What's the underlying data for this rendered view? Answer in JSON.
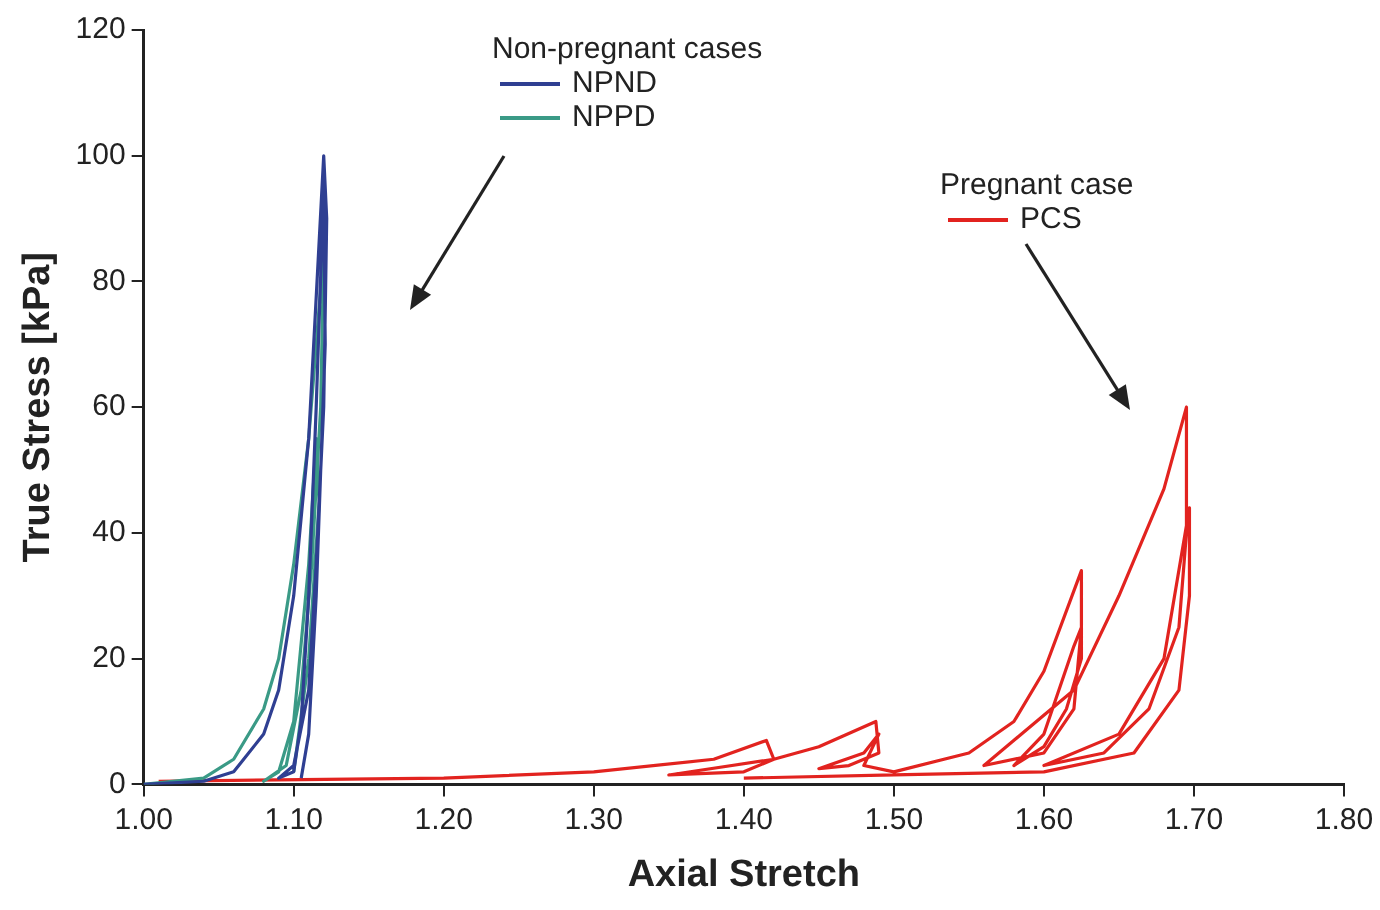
{
  "chart_data": {
    "type": "line",
    "xlabel": "Axial Stretch",
    "ylabel": "True Stress [kPa]",
    "xlim": [
      1.0,
      1.8
    ],
    "xticks": [
      {
        "value": 1.0,
        "label": "1.00"
      },
      {
        "value": 1.1,
        "label": "1.10"
      },
      {
        "value": 1.2,
        "label": "1.20"
      },
      {
        "value": 1.3,
        "label": "1.30"
      },
      {
        "value": 1.4,
        "label": "1.40"
      },
      {
        "value": 1.5,
        "label": "1.50"
      },
      {
        "value": 1.6,
        "label": "1.60"
      },
      {
        "value": 1.7,
        "label": "1.70"
      },
      {
        "value": 1.8,
        "label": "1.80"
      }
    ],
    "ylim": [
      0,
      120
    ],
    "yticks": [
      0,
      20,
      40,
      60,
      80,
      100,
      120
    ],
    "grid": false,
    "legend": "top",
    "marker": "none",
    "line_style": "solid",
    "annotations": [
      "Non-pregnant cases",
      "Pregnant case"
    ],
    "series": [
      {
        "name": "NPND",
        "color": "#2f3f92",
        "x": [
          1.0,
          1.04,
          1.06,
          1.08,
          1.09,
          1.1,
          1.11,
          1.12,
          1.122,
          1.12,
          1.115,
          1.11,
          1.1,
          1.09,
          1.1,
          1.105,
          1.11,
          1.115,
          1.12,
          1.121,
          1.115,
          1.11,
          1.105
        ],
        "values": [
          0,
          0.5,
          2,
          8,
          15,
          30,
          55,
          100,
          90,
          60,
          35,
          15,
          3,
          1,
          2,
          10,
          30,
          60,
          95,
          70,
          30,
          8,
          1
        ]
      },
      {
        "name": "NPPD",
        "color": "#3a9a86",
        "x": [
          1.0,
          1.04,
          1.06,
          1.08,
          1.09,
          1.1,
          1.11,
          1.115,
          1.12,
          1.118,
          1.112,
          1.105,
          1.095,
          1.08,
          1.09,
          1.1,
          1.11,
          1.115,
          1.117,
          1.11,
          1.1
        ],
        "values": [
          0,
          1,
          4,
          12,
          20,
          35,
          55,
          70,
          85,
          60,
          35,
          15,
          3,
          0.5,
          2,
          10,
          35,
          55,
          45,
          20,
          2
        ]
      },
      {
        "name": "PCS",
        "color": "#e2231f",
        "x": [
          1.01,
          1.2,
          1.3,
          1.38,
          1.415,
          1.42,
          1.4,
          1.35,
          1.42,
          1.45,
          1.488,
          1.49,
          1.47,
          1.45,
          1.48,
          1.49,
          1.48,
          1.5,
          1.55,
          1.58,
          1.6,
          1.625,
          1.625,
          1.615,
          1.6,
          1.58,
          1.6,
          1.62,
          1.625,
          1.62,
          1.6,
          1.56,
          1.62,
          1.65,
          1.68,
          1.695,
          1.695,
          1.69,
          1.67,
          1.64,
          1.6,
          1.65,
          1.68,
          1.697,
          1.697,
          1.69,
          1.66,
          1.6,
          1.5,
          1.4
        ],
        "values": [
          0.5,
          1,
          2,
          4,
          7,
          4,
          2,
          1.5,
          4,
          6,
          10,
          5,
          3,
          2.5,
          5,
          8,
          3,
          2,
          5,
          10,
          18,
          34,
          20,
          12,
          6,
          3,
          8,
          22,
          25,
          12,
          5,
          3,
          15,
          30,
          47,
          60,
          40,
          25,
          12,
          5,
          3,
          8,
          20,
          44,
          30,
          15,
          5,
          2,
          1.5,
          1
        ]
      }
    ]
  }
}
